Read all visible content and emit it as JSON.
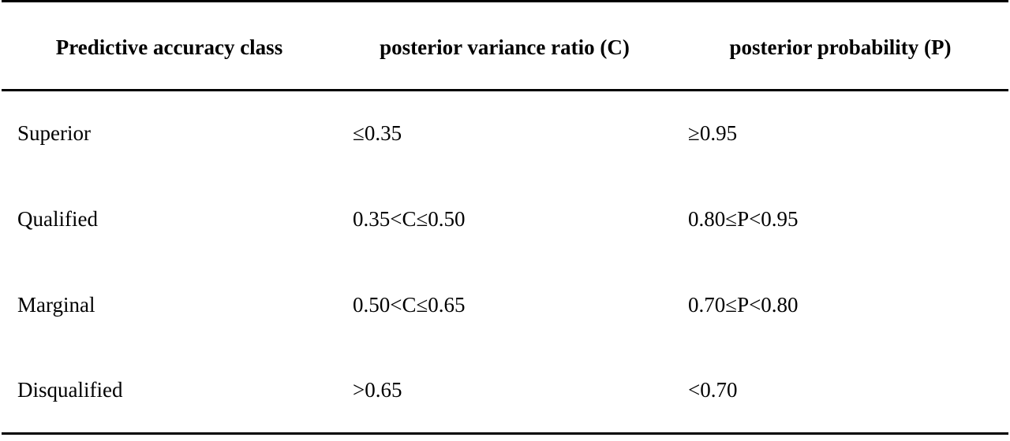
{
  "table": {
    "headers": [
      "Predictive accuracy class",
      "posterior variance ratio (C)",
      "posterior probability (P)"
    ],
    "rows": [
      [
        "Superior",
        "≤0.35",
        "≥0.95"
      ],
      [
        "Qualified",
        "0.35<C≤0.50",
        "0.80≤P<0.95"
      ],
      [
        "Marginal",
        "0.50<C≤0.65",
        "0.70≤P<0.80"
      ],
      [
        "Disqualified",
        ">0.65",
        "<0.70"
      ]
    ]
  }
}
